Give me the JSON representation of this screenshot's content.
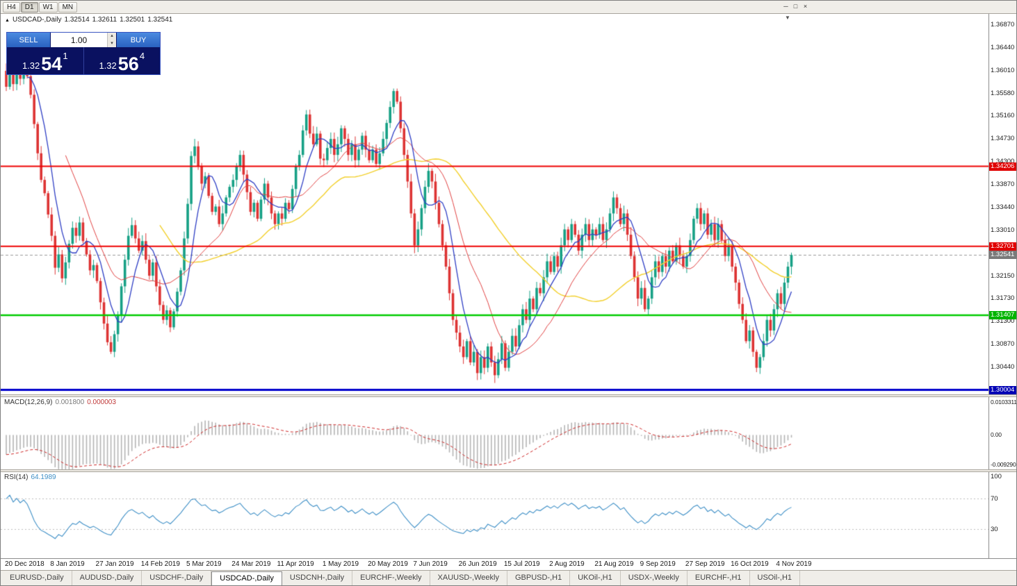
{
  "icons": {
    "collapse": "▲",
    "shift_marker": "▼",
    "spinner_up": "▴",
    "spinner_down": "▾"
  },
  "toolbar": {
    "timeframes": [
      {
        "label": "H4",
        "active": false
      },
      {
        "label": "D1",
        "active": true
      },
      {
        "label": "W1",
        "active": false
      },
      {
        "label": "MN",
        "active": false
      }
    ],
    "window_controls": [
      {
        "name": "window-minimize-button",
        "glyph": "─"
      },
      {
        "name": "window-restore-button",
        "glyph": "□"
      },
      {
        "name": "window-close-button",
        "glyph": "×"
      }
    ]
  },
  "trade_panel": {
    "sell_label": "SELL",
    "buy_label": "BUY",
    "volume": "1.00",
    "sell_price": {
      "prefix": "1.32",
      "big": "54",
      "sup": "1"
    },
    "buy_price": {
      "prefix": "1.32",
      "big": "56",
      "sup": "4"
    }
  },
  "tabs": [
    {
      "label": "EURUSD-,Daily",
      "active": false
    },
    {
      "label": "AUDUSD-,Daily",
      "active": false
    },
    {
      "label": "USDCHF-,Daily",
      "active": false
    },
    {
      "label": "USDCAD-,Daily",
      "active": true
    },
    {
      "label": "USDCNH-,Daily",
      "active": false
    },
    {
      "label": "EURCHF-,Weekly",
      "active": false
    },
    {
      "label": "XAUUSD-,Weekly",
      "active": false
    },
    {
      "label": "GBPUSD-,H1",
      "active": false
    },
    {
      "label": "UKOil-,H1",
      "active": false
    },
    {
      "label": "USDX-,Weekly",
      "active": false
    },
    {
      "label": "EURCHF-,H1",
      "active": false
    },
    {
      "label": "USOil-,H1",
      "active": false
    }
  ],
  "chart_data": {
    "type": "candlestick",
    "symbol": "USDCAD-",
    "timeframe": "Daily",
    "title": "USDCAD-,Daily",
    "ohlc_display": {
      "open": "1.32514",
      "high": "1.32611",
      "low": "1.32501",
      "close": "1.32541"
    },
    "up_color": "#16a085",
    "down_color": "#dd3333",
    "y_axis": {
      "range_top": 1.3707,
      "range_bottom": 1.2992,
      "ticks": [
        "1.36870",
        "1.36440",
        "1.36010",
        "1.35580",
        "1.35160",
        "1.34730",
        "1.34300",
        "1.33870",
        "1.33440",
        "1.33010",
        "1.32580",
        "1.32150",
        "1.31730",
        "1.31300",
        "1.30870",
        "1.30440"
      ],
      "tags": [
        {
          "price": 1.34206,
          "label": "1.34206",
          "bg": "#e00000"
        },
        {
          "price": 1.32701,
          "label": "1.32701",
          "bg": "#e00000"
        },
        {
          "price": 1.32541,
          "label": "1.32541",
          "bg": "#7a7a7a"
        },
        {
          "price": 1.31407,
          "label": "1.31407",
          "bg": "#00b400"
        },
        {
          "price": 1.30004,
          "label": "1.30004",
          "bg": "#0000b4"
        }
      ]
    },
    "x_axis": {
      "labels": [
        "20 Dec 2018",
        "8 Jan 2019",
        "27 Jan 2019",
        "14 Feb 2019",
        "5 Mar 2019",
        "24 Mar 2019",
        "11 Apr 2019",
        "1 May 2019",
        "20 May 2019",
        "7 Jun 2019",
        "26 Jun 2019",
        "15 Jul 2019",
        "2 Aug 2019",
        "21 Aug 2019",
        "9 Sep 2019",
        "27 Sep 2019",
        "16 Oct 2019",
        "4 Nov 2019"
      ],
      "candle_indices": [
        0,
        13,
        26,
        39,
        52,
        65,
        78,
        91,
        104,
        117,
        130,
        143,
        156,
        169,
        182,
        195,
        208,
        221
      ]
    },
    "hlines": [
      {
        "price": 1.34206,
        "color": "#ee0000",
        "width": 2,
        "dash": false
      },
      {
        "price": 1.32701,
        "color": "#ee0000",
        "width": 2,
        "dash": false
      },
      {
        "price": 1.31407,
        "color": "#00cc00",
        "width": 2.5,
        "dash": false
      },
      {
        "price": 1.30004,
        "color": "#0000cc",
        "width": 3,
        "dash": false
      },
      {
        "price": 1.32541,
        "color": "#999999",
        "width": 1,
        "dash": true
      }
    ],
    "moving_averages": [
      {
        "period": 7,
        "color": "#2e3ec4",
        "width": 1.3
      },
      {
        "period": 18,
        "color": "#e04040",
        "width": 1.0
      },
      {
        "period": 45,
        "color": "#f2cf2a",
        "width": 1.4
      }
    ],
    "closes": [
      1.357,
      1.3595,
      1.3575,
      1.36,
      1.3585,
      1.3605,
      1.359,
      1.3555,
      1.35,
      1.3445,
      1.3395,
      1.337,
      1.333,
      1.329,
      1.323,
      1.3255,
      1.321,
      1.324,
      1.3275,
      1.3305,
      1.329,
      1.3315,
      1.328,
      1.3255,
      1.3225,
      1.3235,
      1.3205,
      1.3165,
      1.3125,
      1.309,
      1.3072,
      1.3105,
      1.314,
      1.3195,
      1.3245,
      1.329,
      1.331,
      1.3285,
      1.3262,
      1.328,
      1.3245,
      1.3215,
      1.324,
      1.3195,
      1.316,
      1.3132,
      1.315,
      1.3118,
      1.3148,
      1.3185,
      1.3225,
      1.3285,
      1.335,
      1.344,
      1.3458,
      1.342,
      1.3388,
      1.3402,
      1.3365,
      1.3335,
      1.3345,
      1.3312,
      1.3332,
      1.3362,
      1.3382,
      1.3395,
      1.342,
      1.3442,
      1.3405,
      1.3372,
      1.3335,
      1.3352,
      1.3322,
      1.3358,
      1.3388,
      1.3362,
      1.3332,
      1.3312,
      1.3332,
      1.3322,
      1.3352,
      1.334,
      1.3378,
      1.342,
      1.3442,
      1.3488,
      1.3518,
      1.3482,
      1.3462,
      1.3482,
      1.3435,
      1.3432,
      1.3455,
      1.3472,
      1.3442,
      1.3462,
      1.3492,
      1.3472,
      1.3442,
      1.3462,
      1.3432,
      1.3452,
      1.3478,
      1.3452,
      1.3432,
      1.3452,
      1.3425,
      1.3445,
      1.3472,
      1.3502,
      1.3532,
      1.3562,
      1.3542,
      1.3492,
      1.3442,
      1.3392,
      1.3332,
      1.3272,
      1.3302,
      1.3342,
      1.3382,
      1.3412,
      1.3392,
      1.3352,
      1.3312,
      1.3272,
      1.3232,
      1.3182,
      1.3132,
      1.3108,
      1.3082,
      1.3062,
      1.3092,
      1.3052,
      1.3072,
      1.3032,
      1.3062,
      1.3042,
      1.3082,
      1.3052,
      1.3028,
      1.3058,
      1.3088,
      1.3042,
      1.3072,
      1.3102,
      1.3082,
      1.3122,
      1.3152,
      1.3132,
      1.3172,
      1.3152,
      1.3192,
      1.3182,
      1.3212,
      1.3242,
      1.3222,
      1.3252,
      1.3232,
      1.3272,
      1.3302,
      1.3282,
      1.3312,
      1.3292,
      1.3262,
      1.3292,
      1.3312,
      1.3282,
      1.3302,
      1.3292,
      1.3312,
      1.3282,
      1.3302,
      1.3332,
      1.3362,
      1.3342,
      1.3312,
      1.3332,
      1.3292,
      1.3252,
      1.3212,
      1.3172,
      1.3192,
      1.3152,
      1.3172,
      1.3212,
      1.3242,
      1.3222,
      1.3252,
      1.3232,
      1.3262,
      1.3242,
      1.3272,
      1.3252,
      1.3232,
      1.3252,
      1.3282,
      1.3322,
      1.3342,
      1.3312,
      1.3332,
      1.3292,
      1.3312,
      1.3282,
      1.3312,
      1.3282,
      1.3252,
      1.3272,
      1.3232,
      1.3202,
      1.3162,
      1.3132,
      1.3092,
      1.3112,
      1.3072,
      1.3042,
      1.3062,
      1.3092,
      1.3132,
      1.3112,
      1.3152,
      1.3182,
      1.3162,
      1.3202,
      1.3232,
      1.3254
    ],
    "indicators": {
      "macd": {
        "name": "MACD(12,26,9)",
        "value": "0.001800",
        "signal_value": "0.000003",
        "fast": 12,
        "slow": 26,
        "signal": 9,
        "axis_max_label": "0.0103311",
        "axis_zero_label": "0.00",
        "axis_min_label": "-0.0092903",
        "axis_max": 0.011,
        "axis_min": -0.01,
        "histogram_color": "#b4b4b4",
        "signal_color": "#cc2222"
      },
      "rsi": {
        "name": "RSI(14)",
        "value": "64.1989",
        "period": 14,
        "levels": [
          70,
          30
        ],
        "axis_labels": [
          "100",
          "70",
          "30"
        ],
        "line_color": "#3e8fc6",
        "level_color": "#bbbbbb"
      }
    }
  }
}
